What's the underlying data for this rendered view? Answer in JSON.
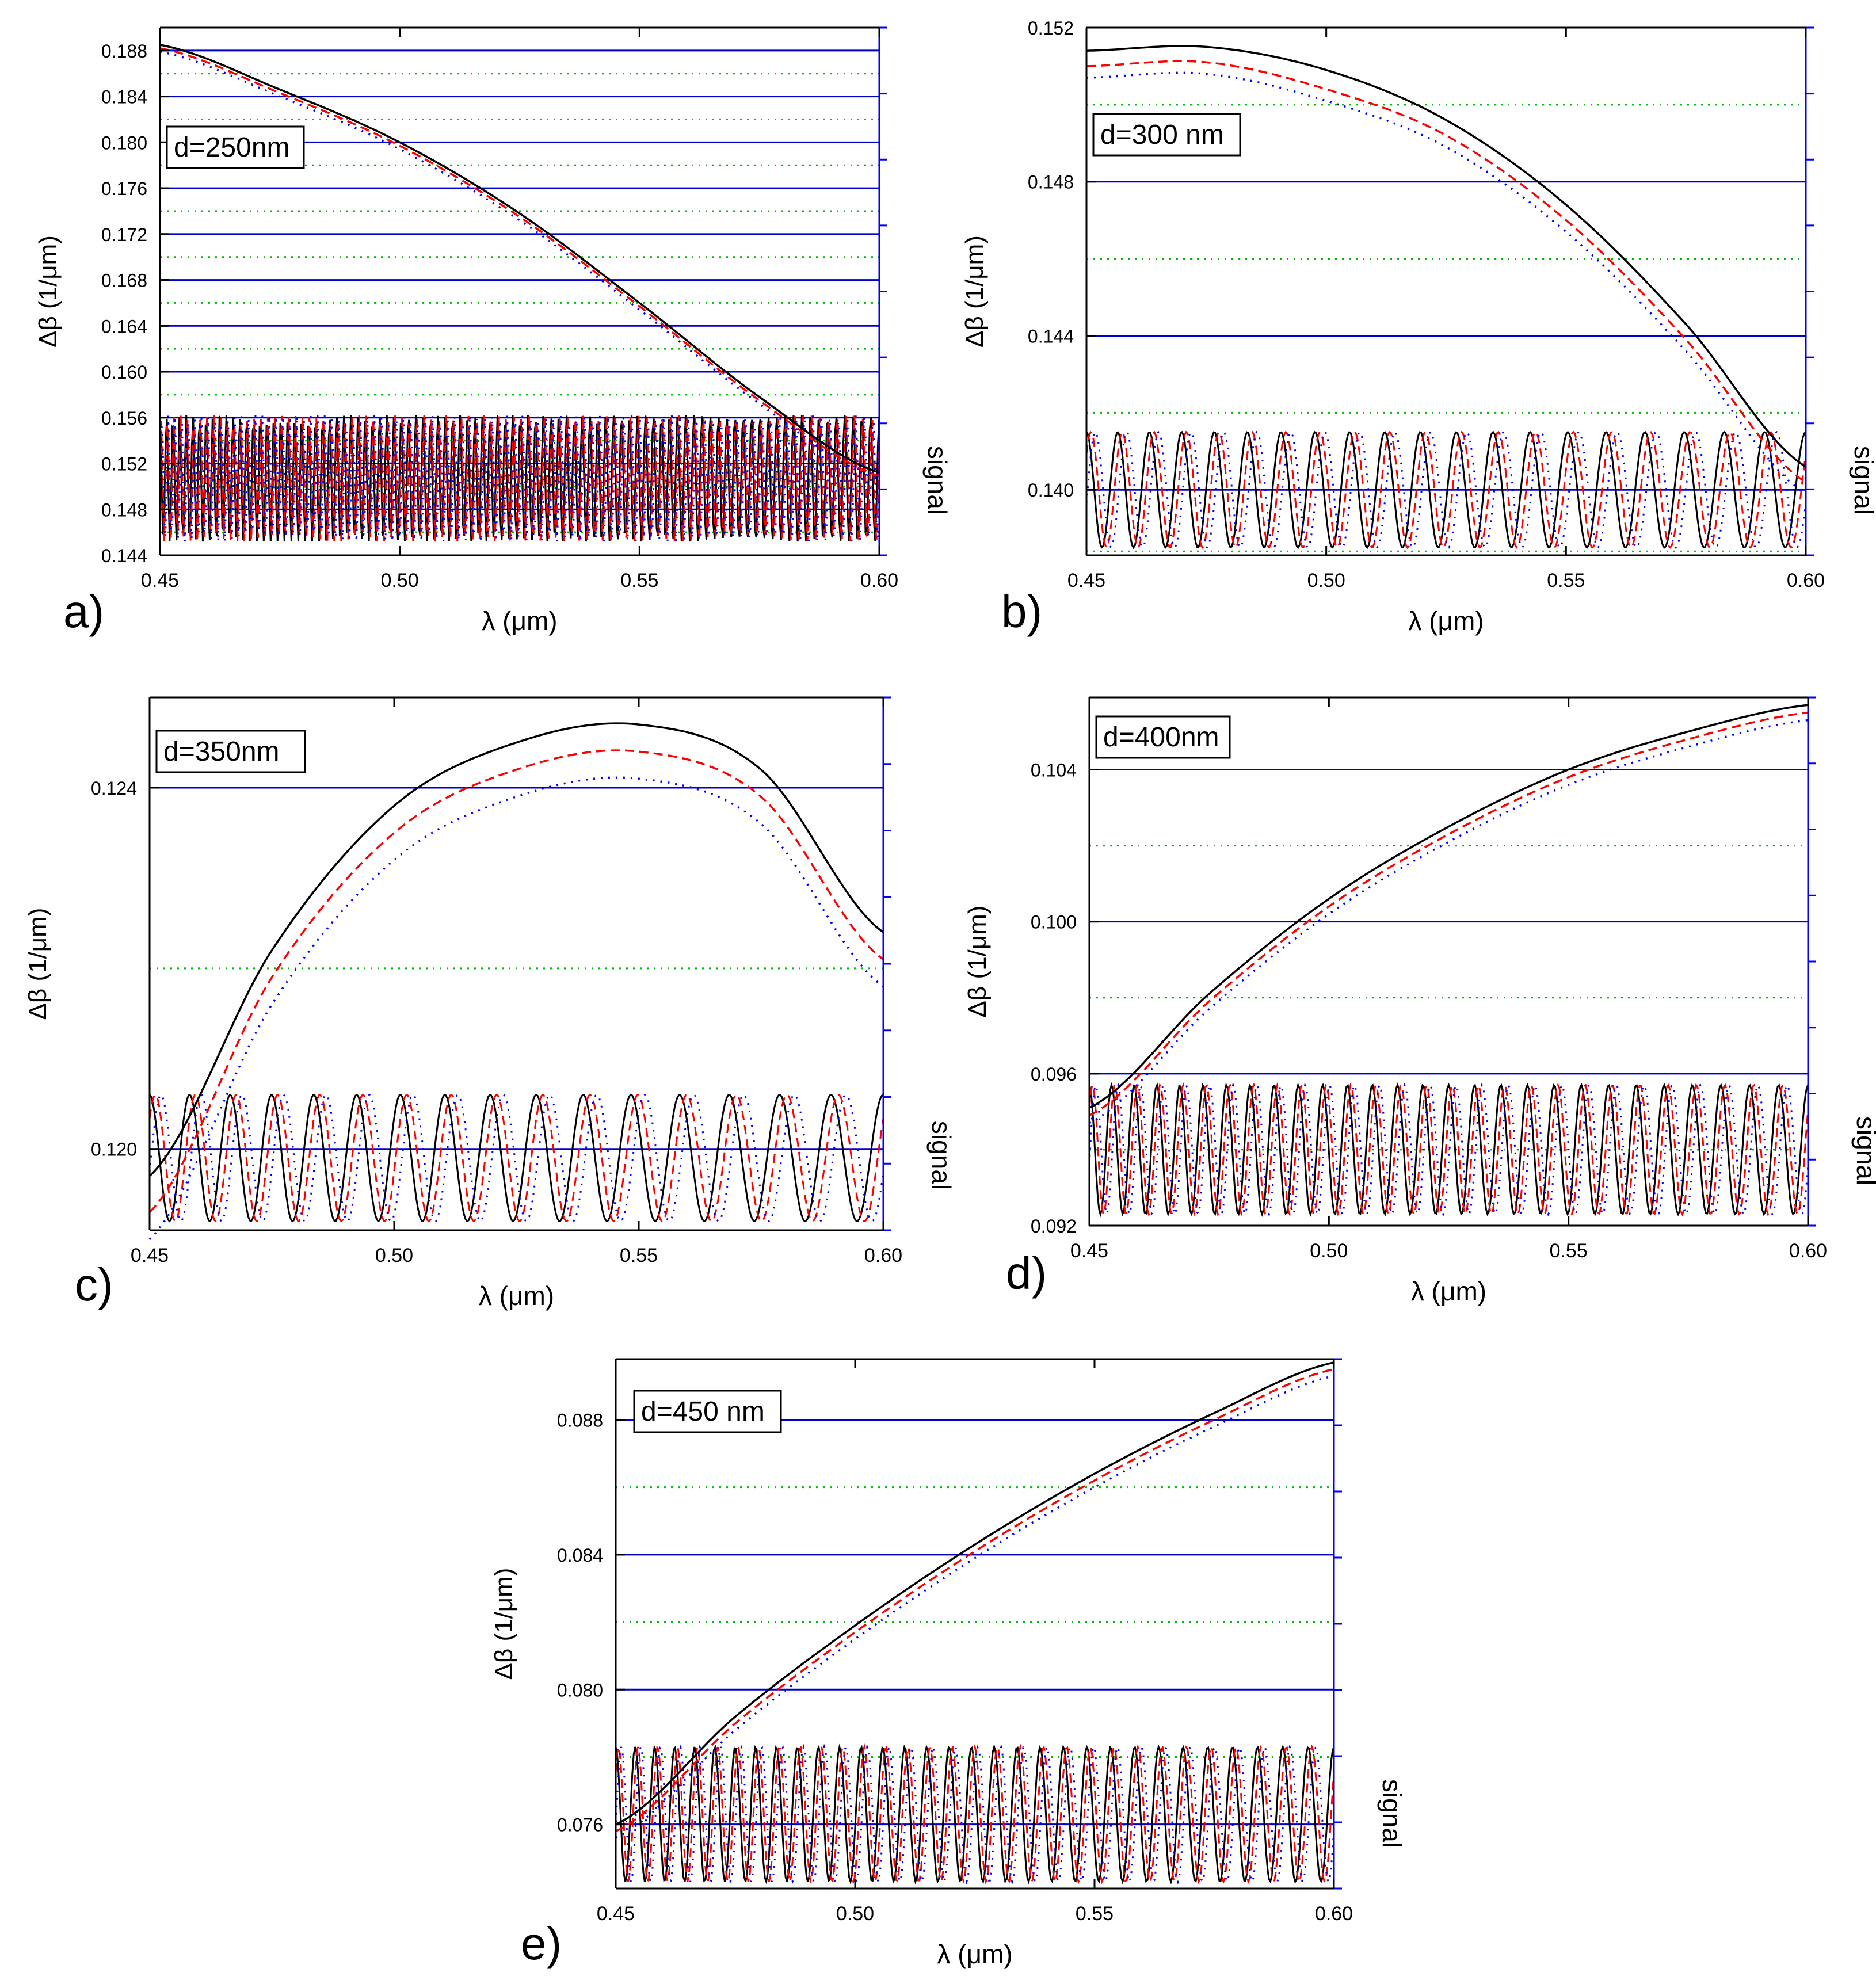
{
  "figure": {
    "colors": {
      "axes": "#000000",
      "right_axis": "#0000ff",
      "major_grid": "#0000cc",
      "minor_grid": "#00bb00",
      "series_solid": "#000000",
      "series_dashed": "#ff0000",
      "series_dotted": "#0000ff"
    },
    "series_styles": [
      {
        "name": "solid",
        "color": "#000000",
        "dash": "solid"
      },
      {
        "name": "dashed",
        "color": "#ff0000",
        "dash": "dashed"
      },
      {
        "name": "dotted",
        "color": "#0000ff",
        "dash": "dotted"
      }
    ]
  },
  "chart_data": [
    {
      "panel": "a)",
      "type": "line",
      "annotation": "d=250nm",
      "xlabel": "λ (μm)",
      "ylabel": "Δβ (1/μm)",
      "y2label": "signal",
      "xlim": [
        0.45,
        0.6
      ],
      "ylim": [
        0.144,
        0.19
      ],
      "xticks": [
        "0.45",
        "0.50",
        "0.55",
        "0.60"
      ],
      "yticks": [
        "0.144",
        "0.148",
        "0.152",
        "0.156",
        "0.160",
        "0.164",
        "0.168",
        "0.172",
        "0.176",
        "0.180",
        "0.184",
        "0.188"
      ],
      "major_grid": [
        0.148,
        0.152,
        0.156,
        0.16,
        0.164,
        0.168,
        0.172,
        0.176,
        0.18,
        0.184,
        0.188
      ],
      "minor_grid": [
        0.146,
        0.15,
        0.154,
        0.158,
        0.162,
        0.166,
        0.17,
        0.174,
        0.178,
        0.182,
        0.186
      ],
      "delta_beta": {
        "x": [
          0.45,
          0.475,
          0.5,
          0.525,
          0.55,
          0.575,
          0.6
        ],
        "series": [
          {
            "name": "solid",
            "values": [
              0.1885,
              0.1846,
              0.18,
              0.1738,
              0.166,
              0.1578,
              0.1512
            ]
          },
          {
            "name": "dashed",
            "values": [
              0.1882,
              0.1843,
              0.1797,
              0.1735,
              0.1657,
              0.1575,
              0.1509
            ]
          },
          {
            "name": "dotted",
            "values": [
              0.1879,
              0.184,
              0.1794,
              0.1732,
              0.1654,
              0.1572,
              0.1506
            ]
          }
        ]
      },
      "signal": {
        "y_min": 0.1452,
        "y_max": 0.1562,
        "series_shift": [
          0,
          0.00095,
          0.0019
        ]
      }
    },
    {
      "panel": "b)",
      "type": "line",
      "annotation": "d=300 nm",
      "xlabel": "λ (μm)",
      "ylabel": "Δβ (1/μm)",
      "y2label": "signal",
      "xlim": [
        0.45,
        0.6
      ],
      "ylim": [
        0.1383,
        0.152
      ],
      "xticks": [
        "0.45",
        "0.50",
        "0.55",
        "0.60"
      ],
      "yticks": [
        "0.140",
        "0.144",
        "0.148",
        "0.152"
      ],
      "major_grid": [
        0.14,
        0.144,
        0.148,
        0.152
      ],
      "minor_grid": [
        0.1384,
        0.142,
        0.146,
        0.15
      ],
      "delta_beta": {
        "x": [
          0.45,
          0.475,
          0.5,
          0.525,
          0.55,
          0.575,
          0.6
        ],
        "series": [
          {
            "name": "solid",
            "values": [
              0.1514,
              0.1515,
              0.1509,
              0.1496,
              0.1474,
              0.1443,
              0.1406
            ]
          },
          {
            "name": "dashed",
            "values": [
              0.151,
              0.1511,
              0.1504,
              0.1492,
              0.147,
              0.1439,
              0.1402
            ]
          },
          {
            "name": "dotted",
            "values": [
              0.1507,
              0.1508,
              0.1501,
              0.1489,
              0.1467,
              0.1436,
              0.1399
            ]
          }
        ]
      },
      "signal": {
        "y_min": 0.1385,
        "y_max": 0.1415,
        "series_shift": [
          0,
          0.0035,
          0.007
        ]
      }
    },
    {
      "panel": "c)",
      "type": "line",
      "annotation": "d=350nm",
      "xlabel": "λ (μm)",
      "ylabel": "Δβ (1/μm)",
      "y2label": "signal",
      "xlim": [
        0.45,
        0.6
      ],
      "ylim": [
        0.1191,
        0.125
      ],
      "xticks": [
        "0.45",
        "0.50",
        "0.55",
        "0.60"
      ],
      "yticks": [
        "0.120",
        "0.124"
      ],
      "major_grid": [
        0.12,
        0.124
      ],
      "minor_grid": [
        0.122
      ],
      "delta_beta": {
        "x": [
          0.45,
          0.475,
          0.5,
          0.525,
          0.55,
          0.575,
          0.6
        ],
        "series": [
          {
            "name": "solid",
            "values": [
              0.1197,
              0.1222,
              0.1238,
              0.1245,
              0.1247,
              0.1242,
              0.1224
            ]
          },
          {
            "name": "dashed",
            "values": [
              0.1193,
              0.1219,
              0.1235,
              0.1242,
              0.1244,
              0.1239,
              0.1221
            ]
          },
          {
            "name": "dotted",
            "values": [
              0.119,
              0.1216,
              0.1232,
              0.1239,
              0.1241,
              0.1236,
              0.1218
            ]
          }
        ]
      },
      "signal": {
        "y_min": 0.1192,
        "y_max": 0.1206,
        "series_shift": [
          0,
          0.0045,
          0.009
        ]
      }
    },
    {
      "panel": "d)",
      "type": "line",
      "annotation": "d=400nm",
      "xlabel": "λ (μm)",
      "ylabel": "Δβ (1/μm)",
      "y2label": "signal",
      "xlim": [
        0.45,
        0.6
      ],
      "ylim": [
        0.092,
        0.1059
      ],
      "xticks": [
        "0.45",
        "0.50",
        "0.55",
        "0.60"
      ],
      "yticks": [
        "0.092",
        "0.096",
        "0.100",
        "0.104"
      ],
      "major_grid": [
        0.096,
        0.1,
        0.104
      ],
      "minor_grid": [
        0.094,
        0.098,
        0.102
      ],
      "delta_beta": {
        "x": [
          0.45,
          0.475,
          0.5,
          0.525,
          0.55,
          0.575,
          0.6
        ],
        "series": [
          {
            "name": "solid",
            "values": [
              0.0951,
              0.0981,
              0.1006,
              0.1025,
              0.104,
              0.105,
              0.1057
            ]
          },
          {
            "name": "dashed",
            "values": [
              0.0949,
              0.0979,
              0.1004,
              0.1023,
              0.1038,
              0.1048,
              0.1055
            ]
          },
          {
            "name": "dotted",
            "values": [
              0.0947,
              0.0977,
              0.1002,
              0.1021,
              0.1036,
              0.1046,
              0.1053
            ]
          }
        ]
      },
      "signal": {
        "y_min": 0.0923,
        "y_max": 0.0957,
        "series_shift": [
          0,
          0.0025,
          0.005
        ]
      }
    },
    {
      "panel": "e)",
      "type": "line",
      "annotation": "d=450 nm",
      "xlabel": "λ (μm)",
      "ylabel": "Δβ (1/μm)",
      "y2label": "signal",
      "xlim": [
        0.45,
        0.6
      ],
      "ylim": [
        0.0741,
        0.0898
      ],
      "xticks": [
        "0.45",
        "0.50",
        "0.55",
        "0.60"
      ],
      "yticks": [
        "0.076",
        "0.080",
        "0.084",
        "0.088"
      ],
      "major_grid": [
        0.076,
        0.08,
        0.084,
        0.088
      ],
      "minor_grid": [
        0.078,
        0.082,
        0.086
      ],
      "delta_beta": {
        "x": [
          0.45,
          0.475,
          0.5,
          0.525,
          0.55,
          0.575,
          0.6
        ],
        "series": [
          {
            "name": "solid",
            "values": [
              0.076,
              0.0792,
              0.0819,
              0.0843,
              0.0864,
              0.0882,
              0.0897
            ]
          },
          {
            "name": "dashed",
            "values": [
              0.0758,
              0.079,
              0.0817,
              0.0841,
              0.0862,
              0.088,
              0.0895
            ]
          },
          {
            "name": "dotted",
            "values": [
              0.0756,
              0.0788,
              0.0815,
              0.0839,
              0.086,
              0.0878,
              0.0893
            ]
          }
        ]
      },
      "signal": {
        "y_min": 0.0743,
        "y_max": 0.0783,
        "series_shift": [
          0,
          0.0025,
          0.005
        ]
      }
    }
  ]
}
